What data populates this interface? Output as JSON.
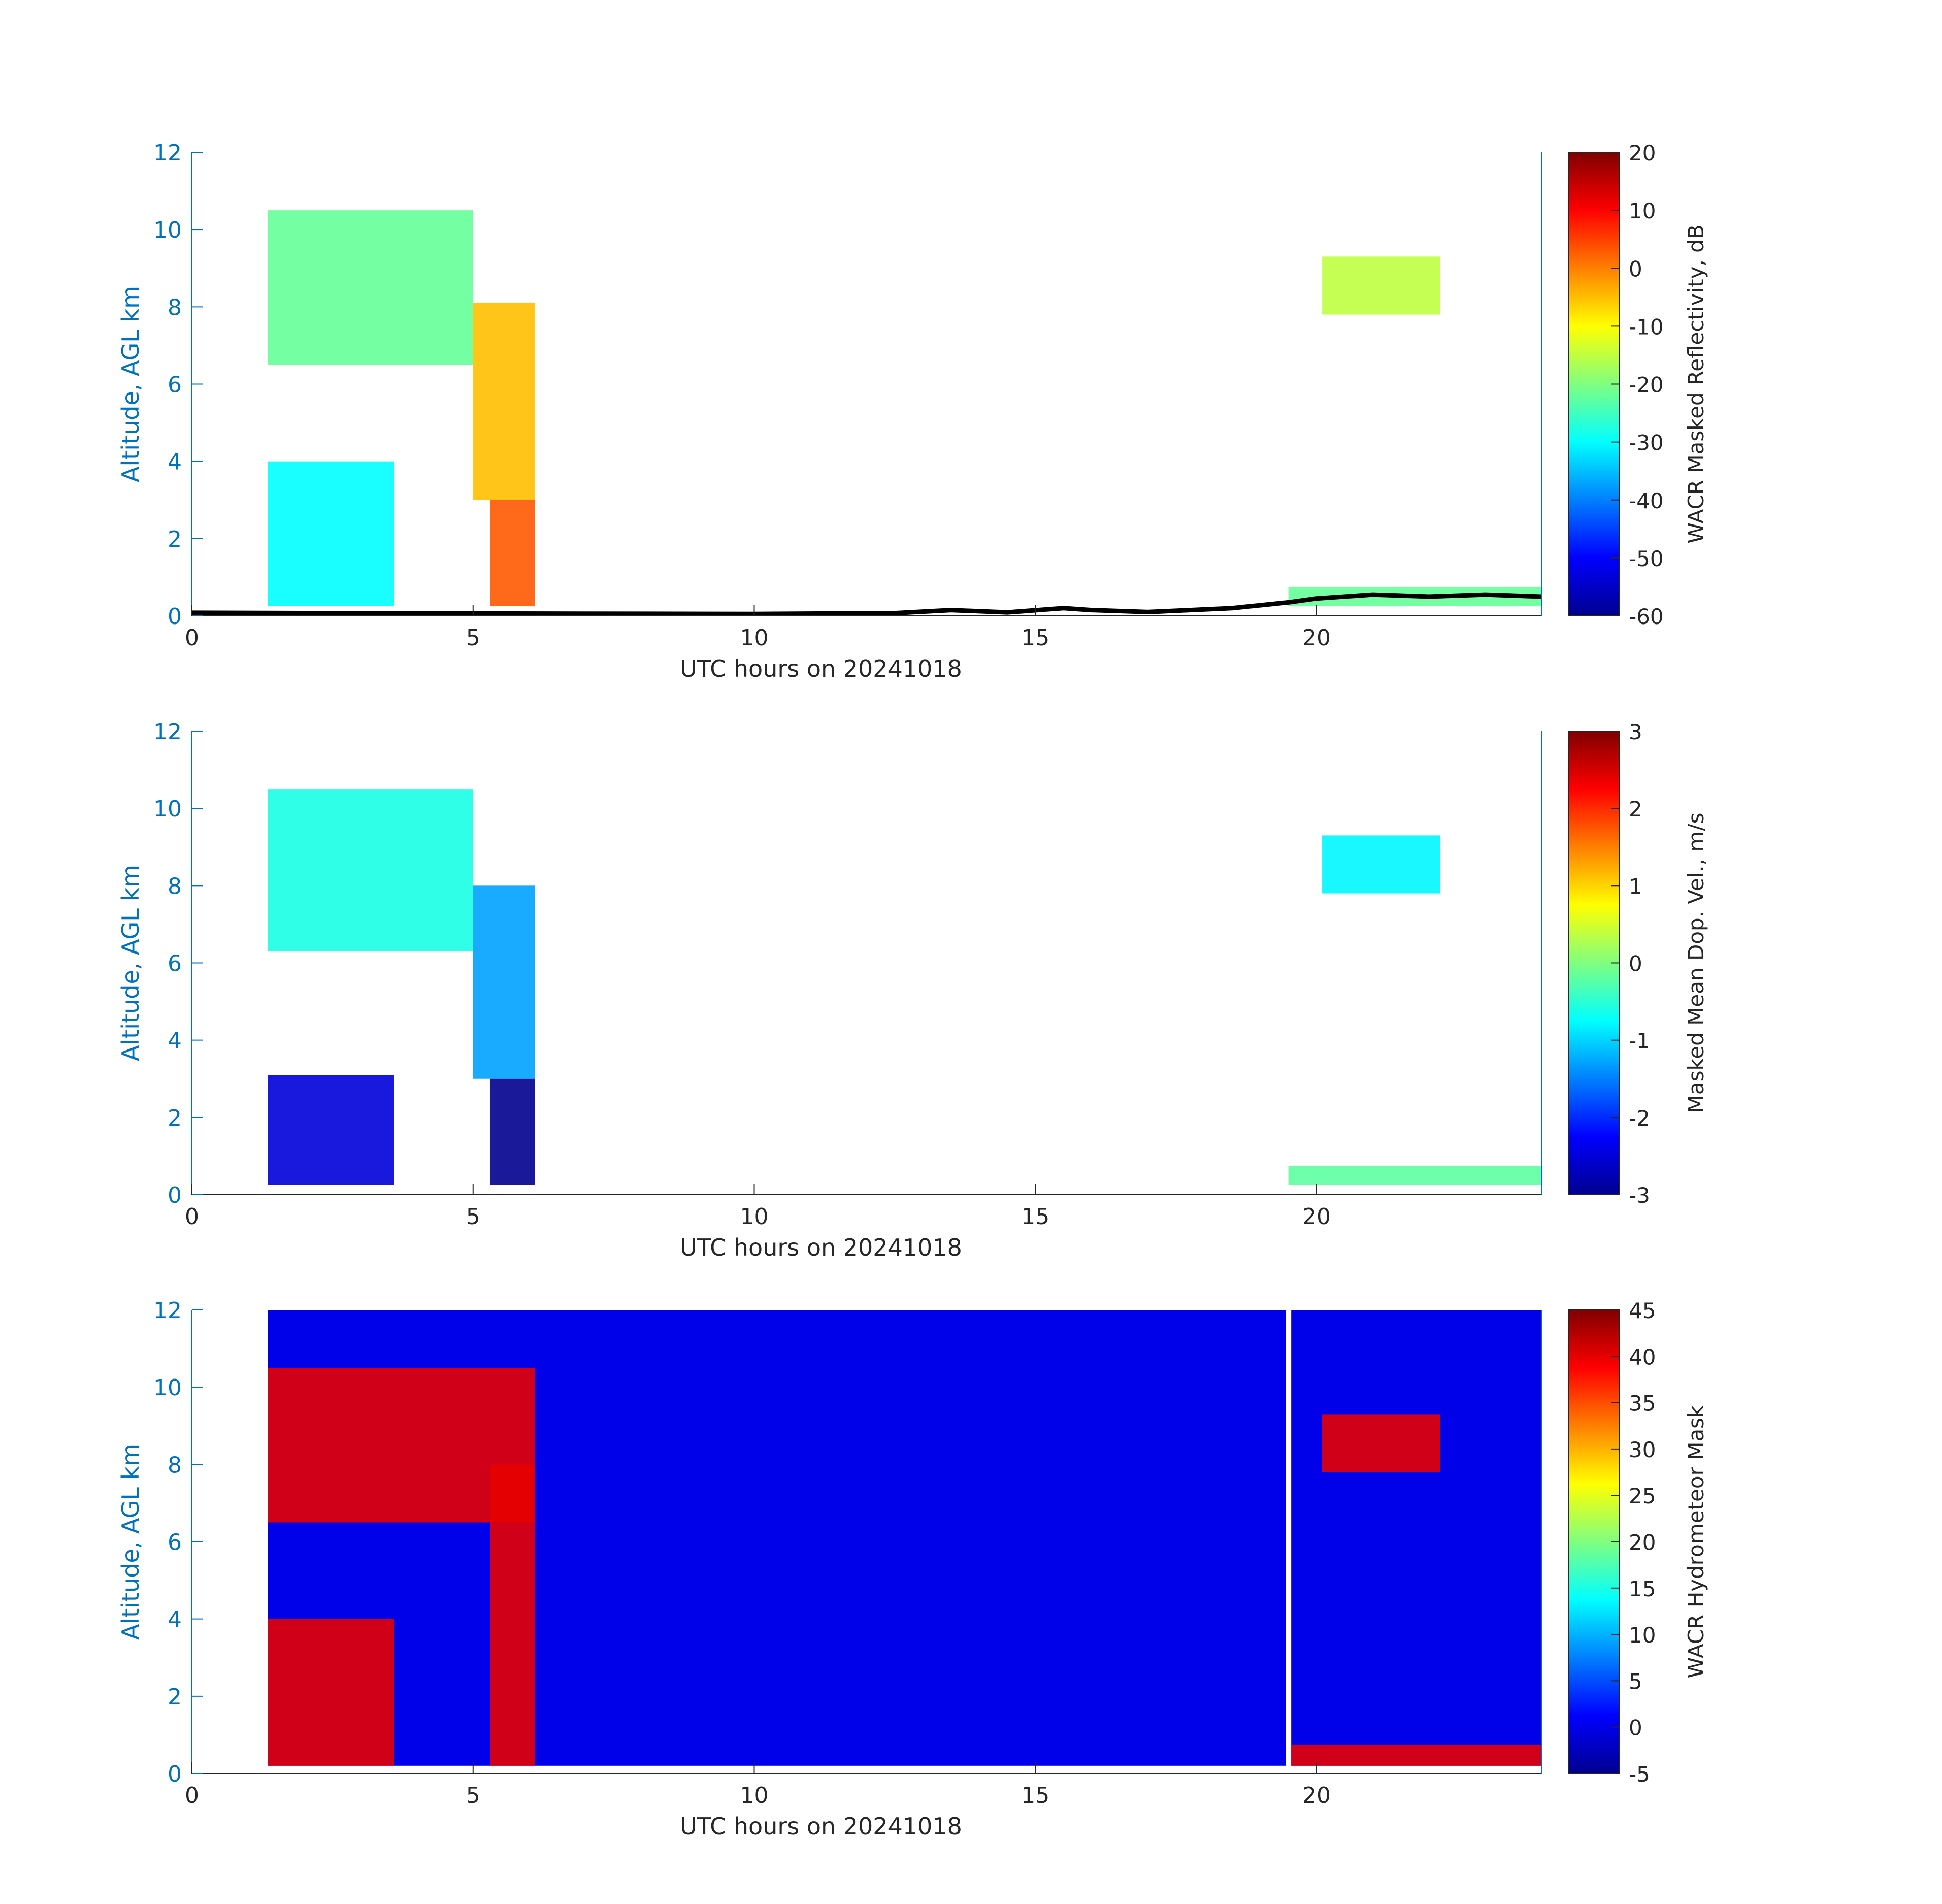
{
  "chart_data": [
    {
      "type": "heatmap",
      "xlabel": "UTC hours on 20241018",
      "ylabel": "Altitude, AGL km",
      "xlim": [
        0,
        24
      ],
      "ylim": [
        0,
        12
      ],
      "xticks": [
        "0",
        "5",
        "10",
        "15",
        "20"
      ],
      "yticks": [
        "0",
        "2",
        "4",
        "6",
        "8",
        "10",
        "12"
      ],
      "colorbar": {
        "label": "WACR Masked Reflectivity, dB",
        "range": [
          -60,
          20
        ],
        "ticks": [
          "20",
          "10",
          "0",
          "-10",
          "-20",
          "-30",
          "-40",
          "-50",
          "-60"
        ]
      },
      "cloud_regions": [
        {
          "x": [
            1.35,
            5.0
          ],
          "y": [
            6.5,
            10.5
          ],
          "value": -22
        },
        {
          "x": [
            5.0,
            6.1
          ],
          "y": [
            3.0,
            8.1
          ],
          "value": -5
        },
        {
          "x": [
            5.3,
            6.1
          ],
          "y": [
            0.25,
            3.0
          ],
          "value": 3
        },
        {
          "x": [
            1.35,
            3.6
          ],
          "y": [
            0.25,
            4.0
          ],
          "value": -30
        },
        {
          "x": [
            19.5,
            24.0
          ],
          "y": [
            0.25,
            0.75
          ],
          "value": -22
        },
        {
          "x": [
            20.1,
            22.2
          ],
          "y": [
            7.8,
            9.3
          ],
          "value": -15
        }
      ],
      "ceilometer_line": {
        "x": [
          0,
          5,
          10,
          12.5,
          13.5,
          14.5,
          15.5,
          16,
          17,
          18.5,
          19.5,
          20,
          21,
          22,
          23,
          24
        ],
        "y": [
          0.08,
          0.06,
          0.05,
          0.07,
          0.15,
          0.09,
          0.2,
          0.15,
          0.1,
          0.2,
          0.35,
          0.45,
          0.55,
          0.5,
          0.55,
          0.5
        ]
      }
    },
    {
      "type": "heatmap",
      "xlabel": "UTC hours on 20241018",
      "ylabel": "Altitude, AGL km",
      "xlim": [
        0,
        24
      ],
      "ylim": [
        0,
        12
      ],
      "xticks": [
        "0",
        "5",
        "10",
        "15",
        "20"
      ],
      "yticks": [
        "0",
        "2",
        "4",
        "6",
        "8",
        "10",
        "12"
      ],
      "colorbar": {
        "label": "Masked Mean Dop. Vel., m/s",
        "range": [
          -3,
          3
        ],
        "ticks": [
          "3",
          "2",
          "1",
          "0",
          "-1",
          "-2",
          "-3"
        ]
      },
      "cloud_regions": [
        {
          "x": [
            1.35,
            5.0
          ],
          "y": [
            6.3,
            10.5
          ],
          "value": -0.6
        },
        {
          "x": [
            5.0,
            6.1
          ],
          "y": [
            3.0,
            8.0
          ],
          "value": -1.3
        },
        {
          "x": [
            5.3,
            6.1
          ],
          "y": [
            0.25,
            3.0
          ],
          "value": -3
        },
        {
          "x": [
            1.35,
            3.6
          ],
          "y": [
            0.25,
            3.1
          ],
          "value": -2.5
        },
        {
          "x": [
            19.5,
            24.0
          ],
          "y": [
            0.25,
            0.75
          ],
          "value": -0.2
        },
        {
          "x": [
            20.1,
            22.2
          ],
          "y": [
            7.8,
            9.3
          ],
          "value": -0.8
        }
      ]
    },
    {
      "type": "heatmap",
      "xlabel": "UTC hours on 20241018",
      "ylabel": "Altitude, AGL km",
      "xlim": [
        0,
        24
      ],
      "ylim": [
        0,
        12
      ],
      "xticks": [
        "0",
        "5",
        "10",
        "15",
        "20"
      ],
      "yticks": [
        "0",
        "2",
        "4",
        "6",
        "8",
        "10",
        "12"
      ],
      "colorbar": {
        "label": "WACR Hydrometeor Mask",
        "range": [
          -5,
          45
        ],
        "ticks": [
          "45",
          "40",
          "35",
          "30",
          "25",
          "20",
          "15",
          "10",
          "5",
          "0",
          "-5"
        ]
      },
      "background_value": 0,
      "background_extent": {
        "x": [
          1.35,
          24.0
        ],
        "y": [
          0.2,
          12
        ]
      },
      "data_gap": {
        "x": [
          19.45,
          19.55
        ]
      },
      "cloud_regions": [
        {
          "x": [
            1.35,
            6.1
          ],
          "y": [
            6.5,
            10.5
          ],
          "value": 40
        },
        {
          "x": [
            5.3,
            6.1
          ],
          "y": [
            0.2,
            8.0
          ],
          "value": 40
        },
        {
          "x": [
            1.35,
            3.6
          ],
          "y": [
            0.2,
            4.0
          ],
          "value": 40
        },
        {
          "x": [
            19.55,
            24.0
          ],
          "y": [
            0.2,
            0.75
          ],
          "value": 40
        },
        {
          "x": [
            20.1,
            22.2
          ],
          "y": [
            7.8,
            9.3
          ],
          "value": 40
        }
      ]
    }
  ],
  "colors": {
    "axis_blue": "#0072bd",
    "text_dark": "#262626"
  }
}
